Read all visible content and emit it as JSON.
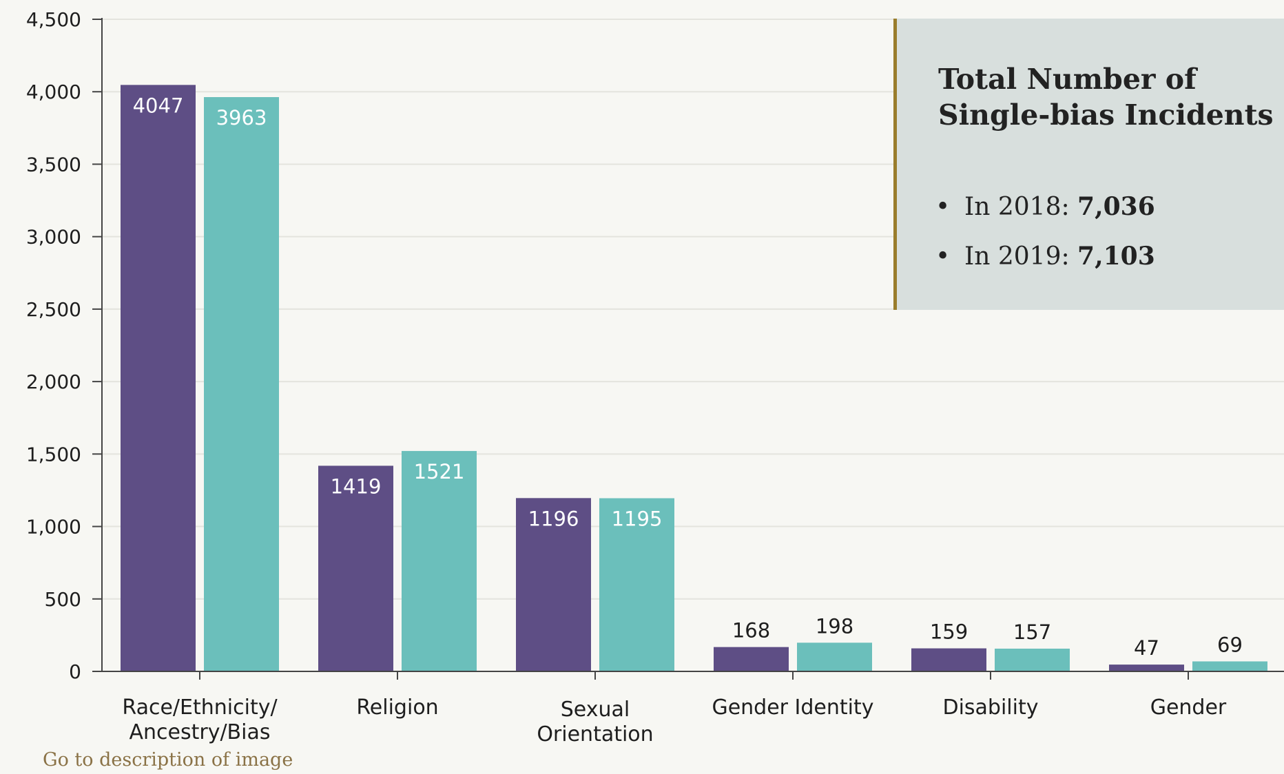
{
  "chart_data": {
    "type": "bar",
    "categories": [
      "Race/Ethnicity/ Ancestry/Bias",
      "Religion",
      "Sexual Orientation",
      "Gender Identity",
      "Disability",
      "Gender"
    ],
    "category_lines": [
      [
        "Race/Ethnicity/",
        "Ancestry/Bias"
      ],
      [
        "Religion"
      ],
      [
        "Sexual",
        "Orientation"
      ],
      [
        "Gender  Identity"
      ],
      [
        "Disability"
      ],
      [
        "Gender"
      ]
    ],
    "series": [
      {
        "color": "#5e4e85",
        "values": [
          4047,
          1419,
          1196,
          168,
          159,
          47
        ]
      },
      {
        "color": "#6bbfbb",
        "values": [
          3963,
          1521,
          1195,
          198,
          157,
          69
        ]
      }
    ],
    "ylim": [
      0,
      4500
    ],
    "yticks": [
      0,
      500,
      1000,
      1500,
      2000,
      2500,
      3000,
      3500,
      4000,
      4500
    ],
    "ytick_labels": [
      "0",
      "500",
      "1,000",
      "1,500",
      "2,000",
      "2,500",
      "3,000",
      "3,500",
      "4,000",
      "4,500"
    ],
    "grid": true,
    "title": "",
    "xlabel": "",
    "ylabel": ""
  },
  "info_box": {
    "title": "Total Number of Single-bias Incidents",
    "bullet": "•",
    "items": [
      {
        "label": "In 2018: ",
        "value": "7,036"
      },
      {
        "label": "In 2019: ",
        "value": "7,103"
      }
    ]
  },
  "link": {
    "text": "Go to description of image"
  }
}
